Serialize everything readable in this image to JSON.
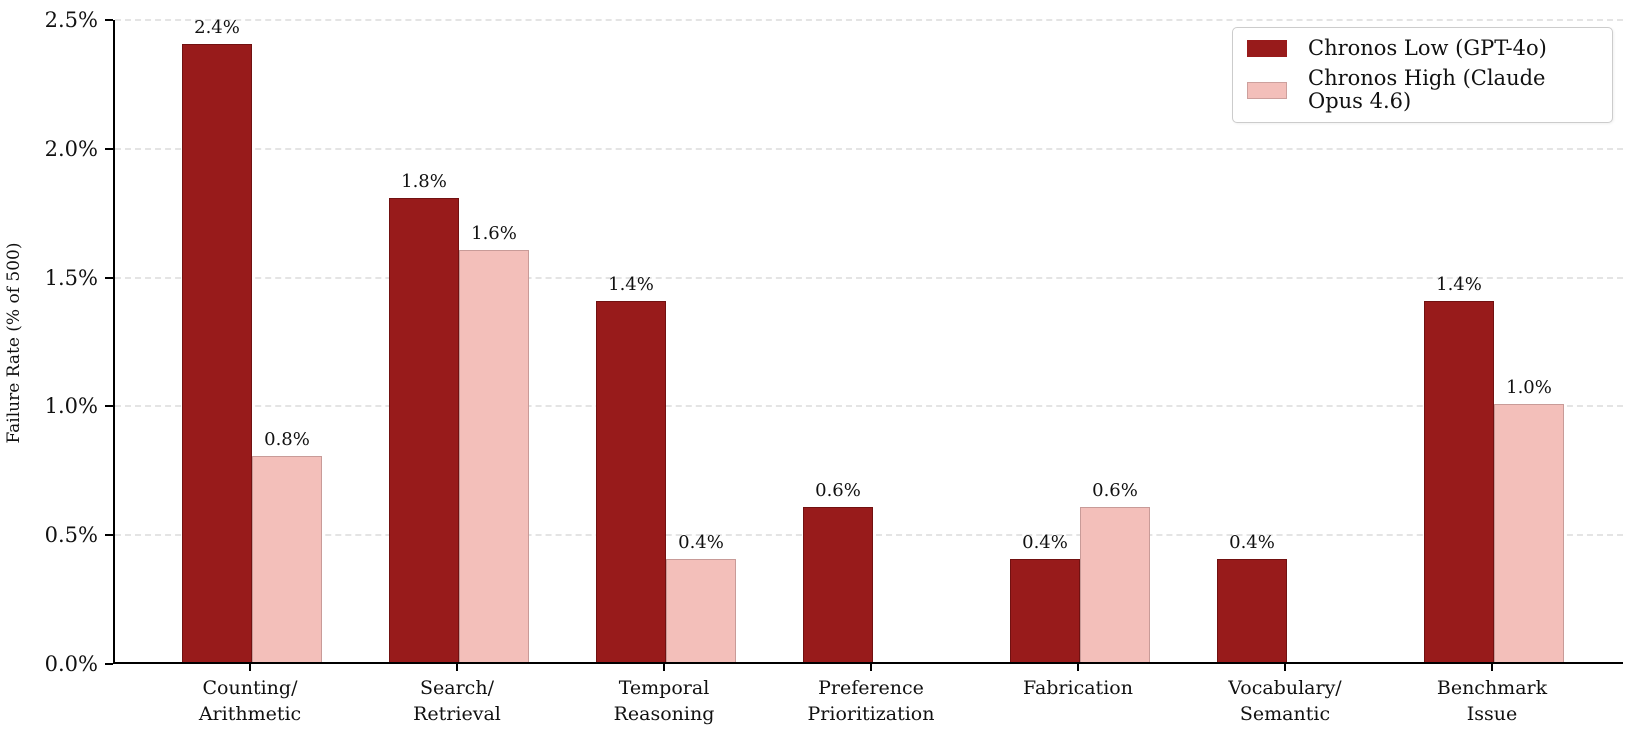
{
  "chart_data": {
    "type": "bar",
    "title": "",
    "xlabel": "",
    "ylabel": "Failure Rate (% of 500)",
    "ylim": [
      0,
      2.5
    ],
    "grid": "horizontal-dashed",
    "legend_position": "upper right",
    "categories": [
      "Counting/\nArithmetic",
      "Search/\nRetrieval",
      "Temporal\nReasoning",
      "Preference\nPrioritization",
      "Fabrication",
      "Vocabulary/\nSemantic",
      "Benchmark\nIssue"
    ],
    "series": [
      {
        "name": "Chronos Low (GPT-4o)",
        "color": "#981b1b",
        "values": [
          2.4,
          1.8,
          1.4,
          0.6,
          0.4,
          0.4,
          1.4
        ],
        "labels": [
          "2.4%",
          "1.8%",
          "1.4%",
          "0.6%",
          "0.4%",
          "0.4%",
          "1.4%"
        ]
      },
      {
        "name": "Chronos High (Claude Opus 4.6)",
        "color": "#f3bfba",
        "values": [
          0.8,
          1.6,
          0.4,
          0,
          0.6,
          0,
          1.0
        ],
        "labels": [
          "0.8%",
          "1.6%",
          "0.4%",
          null,
          "0.6%",
          null,
          "1.0%"
        ]
      }
    ],
    "yticks": [
      {
        "value": 0.0,
        "label": "0.0%"
      },
      {
        "value": 0.5,
        "label": "0.5%"
      },
      {
        "value": 1.0,
        "label": "1.0%"
      },
      {
        "value": 1.5,
        "label": "1.5%"
      },
      {
        "value": 2.0,
        "label": "2.0%"
      },
      {
        "value": 2.5,
        "label": "2.5%"
      }
    ]
  }
}
